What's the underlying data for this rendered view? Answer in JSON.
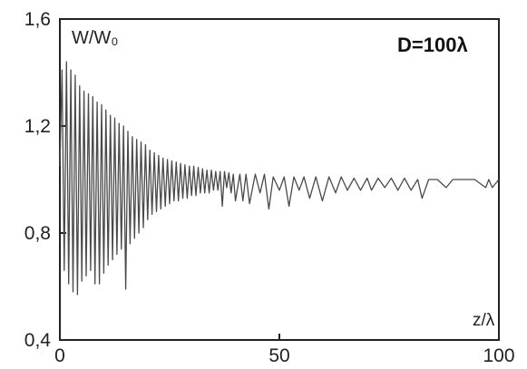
{
  "chart_data": {
    "type": "line",
    "title": "",
    "xlabel": "z/λ",
    "ylabel": "W/W₀",
    "xlim": [
      0,
      100
    ],
    "ylim": [
      0.4,
      1.6
    ],
    "grid": false,
    "legend": "none",
    "x_ticks": [
      0,
      50,
      100
    ],
    "x_tick_labels": [
      "0",
      "50",
      "100"
    ],
    "y_ticks": [
      0.4,
      0.8,
      1.2,
      1.6
    ],
    "y_tick_labels": [
      "0,4",
      "0,8",
      "1,2",
      "1,6"
    ],
    "annotation": "D=100λ",
    "line_color": "#4a4a4a",
    "series": [
      {
        "x": [
          0,
          0.5,
          1.0,
          1.5,
          2.0,
          2.5,
          3.0,
          3.5,
          4.0,
          4.5,
          5.0,
          5.5,
          6.0,
          6.5,
          7.0,
          7.5,
          8.0,
          8.5,
          9.0,
          9.5,
          10.0,
          10.5,
          11.0,
          11.5,
          12.0,
          12.5,
          13.0,
          13.5,
          14.0,
          14.5,
          15.0,
          15.5,
          16.0,
          16.5,
          17.0,
          17.5,
          18.0,
          18.5,
          19.0,
          19.5,
          20.0,
          20.5,
          21.0,
          21.5,
          22.0,
          22.5,
          23.0,
          23.5,
          24.0,
          24.5,
          25.0,
          25.5,
          26.0,
          26.5,
          27.0,
          27.5,
          28.0,
          28.5,
          29.0,
          29.5,
          30.0,
          30.5,
          31.0,
          31.5,
          32.0,
          32.5,
          33.0,
          33.5,
          34.0,
          34.5,
          35.0,
          35.5,
          36.0,
          36.5,
          37.0,
          37.5,
          38.0,
          38.5,
          39.0,
          39.5,
          40.0,
          41.0,
          41.7,
          42.4,
          43.2,
          44.5,
          45.6,
          46.6,
          47.6,
          48.6,
          50.0,
          51.1,
          52.2,
          53.3,
          54.5,
          55.6,
          56.9,
          58.3,
          59.8,
          61.3,
          62.8,
          64.1,
          65.5,
          67.0,
          68.5,
          70.0,
          71.0,
          72.5,
          74.0,
          75.5,
          77.0,
          78.5,
          80.0,
          81.5,
          82.5,
          84.0,
          86.0,
          88.0,
          89.5,
          92.0,
          94.5,
          97.0,
          97.7,
          98.5,
          100.0
        ],
        "y": [
          1.05,
          1.41,
          0.66,
          1.44,
          0.61,
          1.41,
          0.58,
          1.39,
          0.57,
          1.35,
          0.62,
          1.33,
          0.64,
          1.32,
          0.66,
          1.31,
          0.61,
          1.29,
          0.61,
          1.28,
          0.65,
          1.26,
          0.68,
          1.24,
          0.7,
          1.23,
          0.72,
          1.21,
          0.74,
          1.2,
          0.59,
          1.18,
          0.76,
          1.16,
          0.78,
          1.15,
          0.8,
          1.14,
          0.82,
          1.13,
          0.85,
          1.11,
          0.87,
          1.1,
          0.88,
          1.09,
          0.89,
          1.08,
          0.9,
          1.075,
          0.91,
          1.07,
          0.92,
          1.065,
          0.92,
          1.06,
          0.93,
          1.055,
          0.93,
          1.05,
          0.94,
          1.05,
          0.94,
          1.045,
          0.95,
          1.04,
          0.95,
          1.035,
          0.95,
          1.035,
          0.96,
          1.03,
          0.96,
          1.03,
          0.9,
          1.03,
          0.97,
          1.025,
          0.95,
          1.02,
          0.92,
          1.02,
          0.92,
          1.02,
          0.91,
          1.02,
          0.95,
          1.02,
          0.89,
          1.01,
          0.96,
          1.01,
          0.9,
          1.01,
          0.96,
          1.01,
          0.93,
          1.01,
          0.92,
          1.01,
          0.95,
          1.01,
          0.96,
          1.005,
          0.96,
          1.005,
          0.96,
          1.005,
          0.97,
          1.005,
          0.96,
          1.005,
          0.96,
          1.0,
          0.93,
          1.0,
          1.0,
          0.97,
          1.0,
          1.0,
          1.0,
          0.97,
          1.0,
          0.97,
          1.0
        ]
      }
    ]
  }
}
